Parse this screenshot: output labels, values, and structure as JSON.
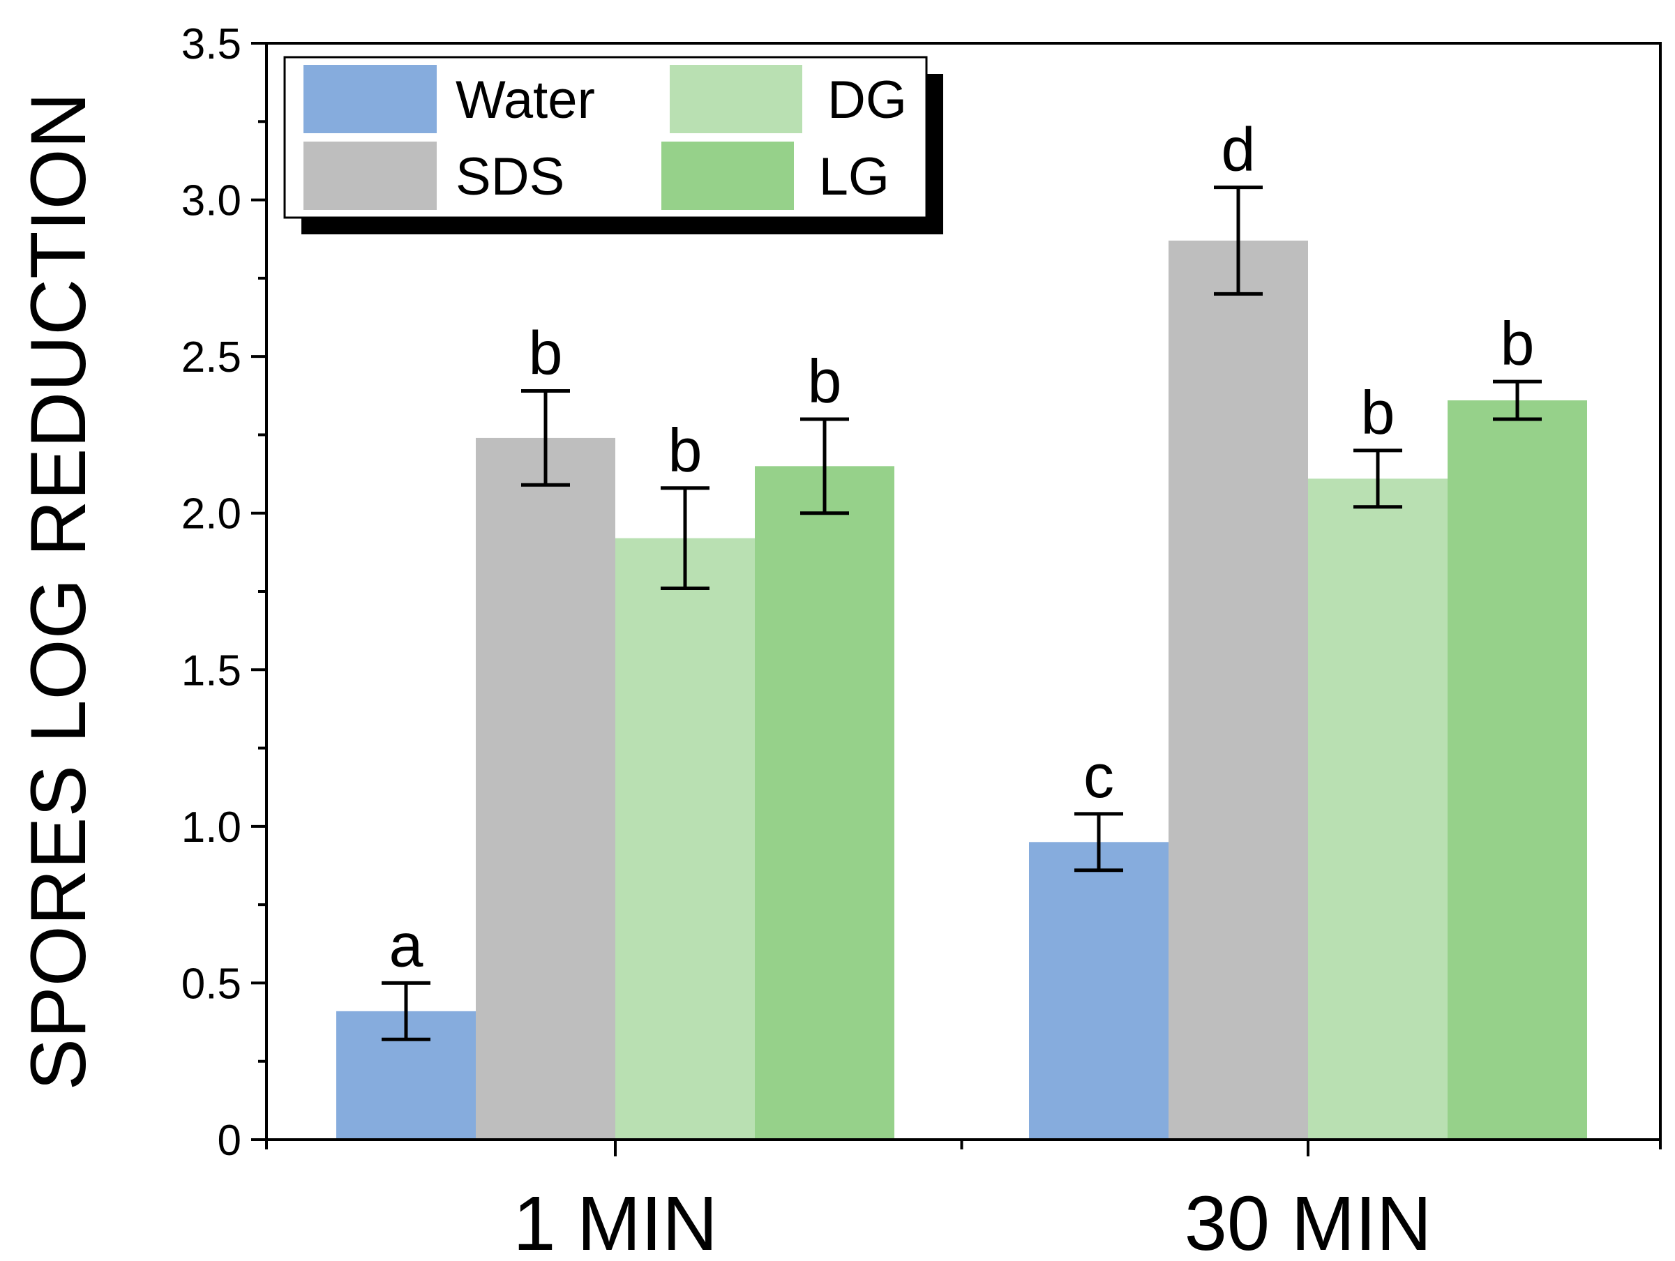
{
  "chart_data": {
    "type": "bar",
    "title": "",
    "xlabel": "",
    "ylabel": "SPORES LOG REDUCTION",
    "ylim": [
      0,
      3.5
    ],
    "yticks": [
      {
        "value": 0,
        "label": "0"
      },
      {
        "value": 0.5,
        "label": "0.5"
      },
      {
        "value": 1.0,
        "label": "1.0"
      },
      {
        "value": 1.5,
        "label": "1.5"
      },
      {
        "value": 2.0,
        "label": "2.0"
      },
      {
        "value": 2.5,
        "label": "2.5"
      },
      {
        "value": 3.0,
        "label": "3.0"
      },
      {
        "value": 3.5,
        "label": "3.5"
      }
    ],
    "categories": [
      "1 MIN",
      "30 MIN"
    ],
    "series": [
      {
        "name": "Water",
        "color": "#86acdd",
        "values": [
          0.41,
          0.95
        ],
        "errors": [
          0.09,
          0.09
        ],
        "letters": [
          "a",
          "c"
        ]
      },
      {
        "name": "SDS",
        "color": "#bebebe",
        "values": [
          2.24,
          2.87
        ],
        "errors": [
          0.15,
          0.17
        ],
        "letters": [
          "b",
          "d"
        ]
      },
      {
        "name": "DG",
        "color": "#b9e0b2",
        "values": [
          1.92,
          2.11
        ],
        "errors": [
          0.16,
          0.09
        ],
        "letters": [
          "b",
          "b"
        ]
      },
      {
        "name": "LG",
        "color": "#96d18a",
        "values": [
          2.15,
          2.36
        ],
        "errors": [
          0.15,
          0.06
        ],
        "letters": [
          "b",
          "b"
        ]
      }
    ],
    "legend": {
      "position": "top-left",
      "columns": 2,
      "order": [
        "Water",
        "DG",
        "SDS",
        "LG"
      ]
    }
  }
}
